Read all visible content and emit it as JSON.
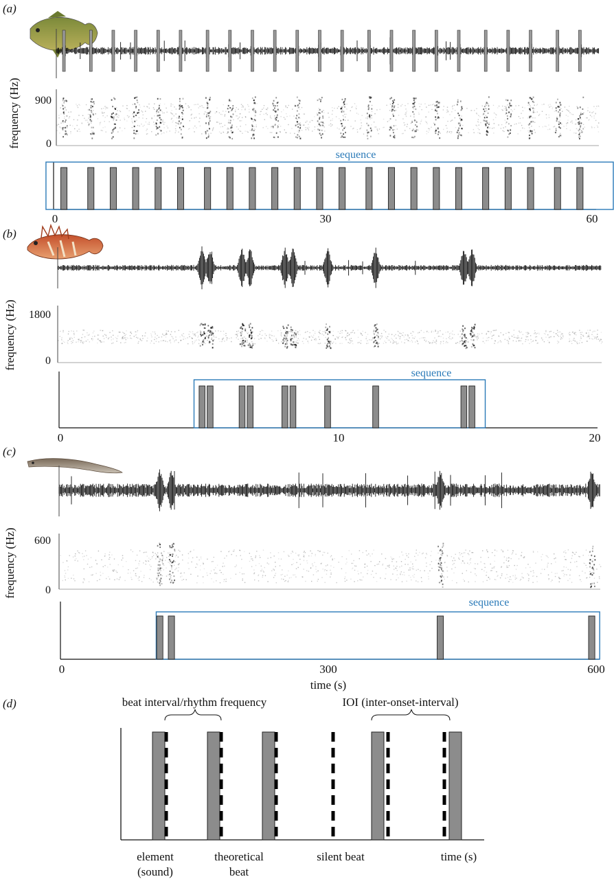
{
  "panels": [
    {
      "label": "(a)",
      "ylabel": "frequency (Hz)",
      "freq_ticks": [
        "900",
        "0"
      ],
      "freq_max": 900,
      "sequence_label": "sequence",
      "xticks": [
        "0",
        "30",
        "60"
      ],
      "xmax": 60,
      "sequence_range": [
        -1,
        61
      ],
      "events": [
        1,
        4,
        6.5,
        9,
        11.5,
        14,
        17,
        19.5,
        22,
        24.5,
        27,
        29.5,
        32,
        35,
        37.5,
        40,
        42.5,
        45,
        48,
        50.5,
        53,
        56,
        58.5
      ],
      "event_width": 0.7,
      "fish_icon": "grouper-fish-icon"
    },
    {
      "label": "(b)",
      "ylabel": "frequency (Hz)",
      "freq_ticks": [
        "1800",
        "0"
      ],
      "freq_max": 1800,
      "sequence_label": "sequence",
      "xticks": [
        "0",
        "10",
        "20"
      ],
      "xmax": 20,
      "sequence_range": [
        5,
        15.9
      ],
      "events": [
        5.3,
        5.6,
        6.8,
        7.1,
        8.4,
        8.7,
        10,
        11.8,
        15.1,
        15.4
      ],
      "event_width": 0.22,
      "fish_icon": "scorpionfish-icon"
    },
    {
      "label": "(c)",
      "ylabel": "frequency (Hz)",
      "freq_ticks": [
        "600",
        "0"
      ],
      "freq_max": 600,
      "sequence_label": "sequence",
      "xticks": [
        "0",
        "300",
        "600"
      ],
      "xlabel": "time (s)",
      "xmax": 600,
      "sequence_range": [
        106,
        604
      ],
      "events": [
        110,
        123,
        425,
        595
      ],
      "event_width": 7,
      "fish_icon": "eel-icon"
    }
  ],
  "diagram": {
    "label": "(d)",
    "bracket_left": "beat interval/rhythm frequency",
    "bracket_right": "IOI (inter-onset-interval)",
    "caption_element": [
      "element",
      "(sound)"
    ],
    "caption_beat": [
      "theoretical",
      "beat"
    ],
    "caption_silent": "silent beat",
    "caption_time": "time (s)"
  },
  "colors": {
    "sequence_box": "#2a7ab8",
    "element_bar": "#8c8c8c",
    "waveform": "#111111"
  }
}
